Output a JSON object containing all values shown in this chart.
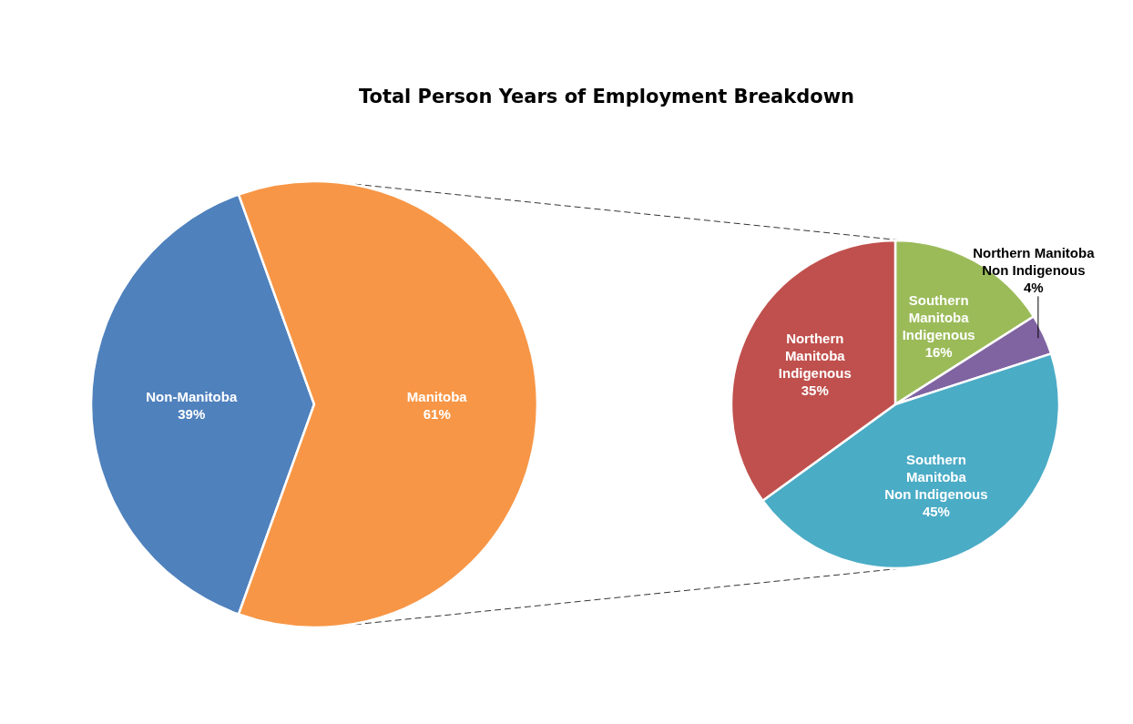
{
  "chart_data": [
    {
      "type": "pie",
      "title": "Total Person Years of Employment Breakdown",
      "categories": [
        "Non-Manitoba",
        "Manitoba"
      ],
      "values": [
        39,
        61
      ],
      "value_labels": [
        "39%",
        "61%"
      ],
      "colors": [
        "#4f81bd",
        "#f79646"
      ]
    },
    {
      "type": "pie",
      "categories": [
        "Southern Manitoba Indigenous",
        "Northern Manitoba Non Indigenous",
        "Southern Manitoba Non Indigenous",
        "Northern Manitoba Indigenous"
      ],
      "values": [
        16,
        4,
        45,
        35
      ],
      "value_labels": [
        "16%",
        "4%",
        "45%",
        "35%"
      ],
      "colors": [
        "#9bbb59",
        "#8064a2",
        "#4bacc6",
        "#c0504d"
      ]
    }
  ]
}
